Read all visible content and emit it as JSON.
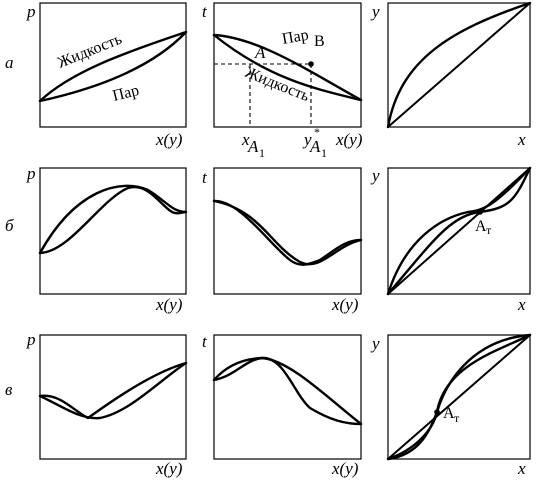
{
  "rows": [
    {
      "label": "а",
      "p_plot": {
        "y_axis": "p",
        "x_axis": "x(y)",
        "upper_label": "Жидкость",
        "lower_label": "Пар"
      },
      "t_plot": {
        "y_axis": "t",
        "x_axis": "x(y)",
        "upper_label": "Пар",
        "lower_label": "Жидкость",
        "point_A": "A",
        "point_B": "B",
        "tick_x": "x",
        "tick_x_sub": "A",
        "tick_x_sub2": "1",
        "tick_y": "y",
        "tick_y_star": "*",
        "tick_y_sub": "A",
        "tick_y_sub2": "1"
      },
      "xy_plot": {
        "y_axis": "y",
        "x_axis": "x"
      }
    },
    {
      "label": "б",
      "p_plot": {
        "y_axis": "p",
        "x_axis": "x(y)"
      },
      "t_plot": {
        "y_axis": "t",
        "x_axis": "x(y)"
      },
      "xy_plot": {
        "y_axis": "y",
        "x_axis": "x",
        "point_label": "A",
        "point_sub": "т"
      }
    },
    {
      "label": "в",
      "p_plot": {
        "y_axis": "p",
        "x_axis": "x(y)"
      },
      "t_plot": {
        "y_axis": "t",
        "x_axis": "x(y)"
      },
      "xy_plot": {
        "y_axis": "y",
        "x_axis": "x",
        "point_label": "A",
        "point_sub": "т"
      }
    }
  ]
}
